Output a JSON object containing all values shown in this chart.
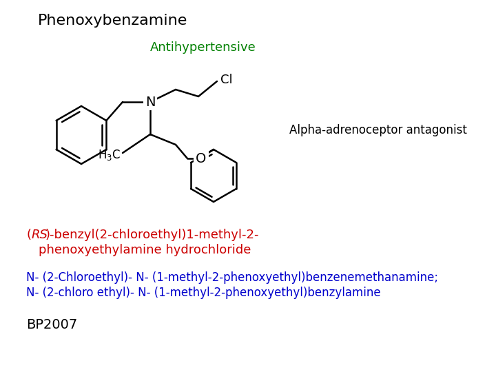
{
  "title": "Phenoxybenzamine",
  "antihypertensive_text": "Antihypertensive",
  "antihypertensive_color": "#008000",
  "alpha_text": "Alpha-adrenoceptor antagonist",
  "alpha_color": "#000000",
  "rs_color": "#cc0000",
  "iupac_line1": "N- (2-Chloroethyl)- N- (1-methyl-2-phenoxyethyl)benzenemethanamine;",
  "iupac_line2": "N- (2-chloro ethyl)- N- (1-methyl-2-phenoxyethyl)benzylamine",
  "iupac_color": "#0000cc",
  "bp_text": "BP2007",
  "bp_color": "#000000",
  "bg_color": "#ffffff",
  "title_fontsize": 16,
  "antihyp_fontsize": 13,
  "alpha_fontsize": 12,
  "rs_fontsize": 13,
  "iupac_fontsize": 12,
  "bp_fontsize": 14
}
